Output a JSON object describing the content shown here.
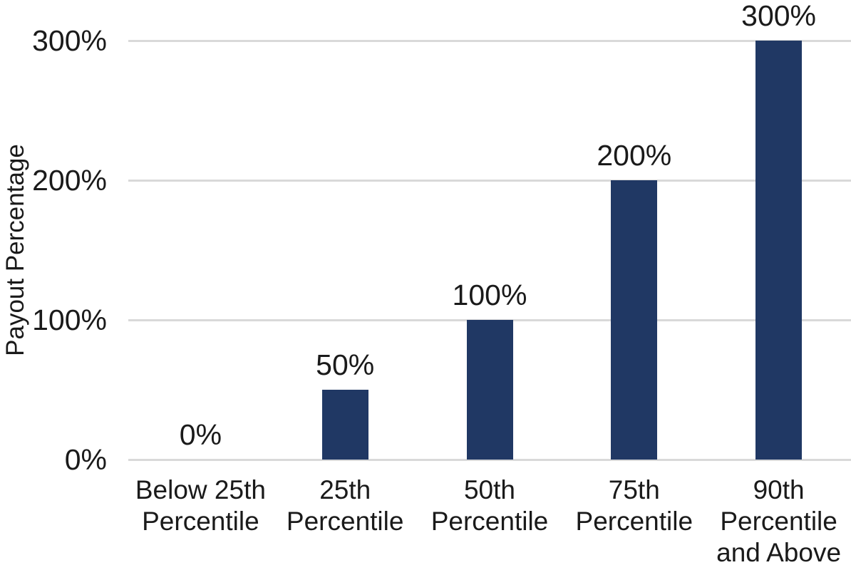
{
  "chart_data": {
    "type": "bar",
    "title": "",
    "xlabel": "",
    "ylabel": "Payout Percentage",
    "categories": [
      "Below 25th\nPercentile",
      "25th\nPercentile",
      "50th\nPercentile",
      "75th\nPercentile",
      "90th\nPercentile\nand Above"
    ],
    "values": [
      0,
      50,
      100,
      200,
      300
    ],
    "data_labels": [
      "0%",
      "50%",
      "100%",
      "200%",
      "300%"
    ],
    "yticks": [
      {
        "value": 0,
        "label": "0%"
      },
      {
        "value": 100,
        "label": "100%"
      },
      {
        "value": 200,
        "label": "200%"
      },
      {
        "value": 300,
        "label": "300%"
      }
    ],
    "ylim": [
      0,
      300
    ],
    "grid": "horizontal",
    "legend": false,
    "colors": {
      "bar": "#203864",
      "gridline": "#d9d9d9",
      "text": "#1a1a1a",
      "background": "#ffffff"
    }
  }
}
